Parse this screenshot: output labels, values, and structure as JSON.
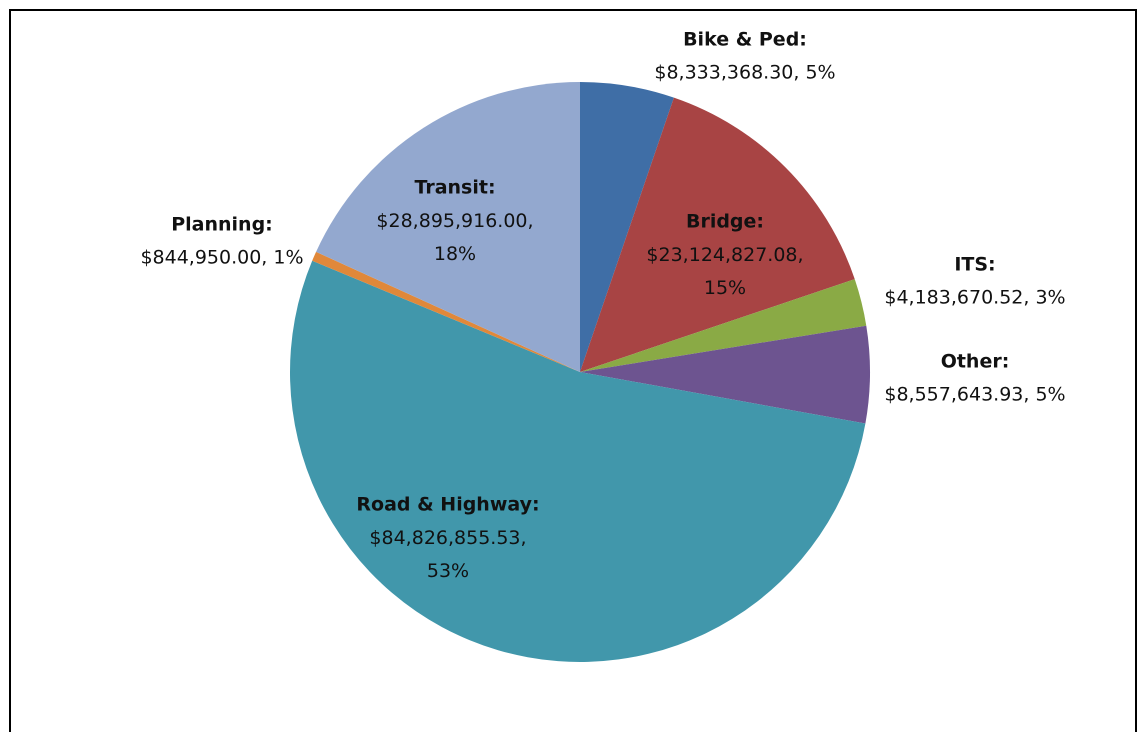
{
  "chart_data": {
    "type": "pie",
    "categories": [
      "Bike & Ped:",
      "Bridge:",
      "ITS:",
      "Other:",
      "Road & Highway:",
      "Planning:",
      "Transit:"
    ],
    "values": [
      8333368.3,
      23124827.08,
      4183670.52,
      8557643.93,
      84826855.53,
      844950.0,
      28895916.0
    ],
    "value_labels": [
      "$8,333,368.30, 5%",
      "$23,124,827.08, 15%",
      "$4,183,670.52, 3%",
      "$8,557,643.93, 5%",
      "$84,826,855.53, 53%",
      "$844,950.00, 1%",
      "$28,895,916.00, 18%"
    ],
    "colors": [
      "#3f6ea6",
      "#a84444",
      "#8aaa45",
      "#6d5490",
      "#4197ab",
      "#e0883a",
      "#93a8cf"
    ]
  }
}
